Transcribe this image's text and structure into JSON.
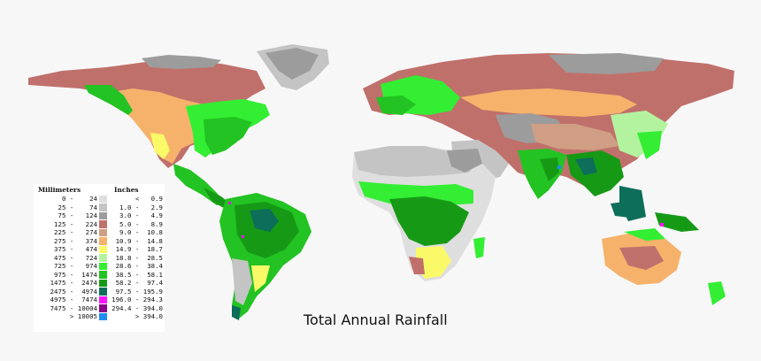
{
  "title": "Total Annual Rainfall",
  "legend": {
    "mm_header": "Millimeters",
    "in_header": "Inches",
    "rows": [
      {
        "mm": "0 -    24",
        "in": "<   0.9",
        "color": "#dedede"
      },
      {
        "mm": "25 -    74",
        "in": "1.0 -   2.9",
        "color": "#c4c4c4"
      },
      {
        "mm": "75 -   124",
        "in": "3.0 -   4.9",
        "color": "#9c9c9c"
      },
      {
        "mm": "125 -   224",
        "in": "5.0 -   8.9",
        "color": "#c0706b"
      },
      {
        "mm": "225 -   274",
        "in": "9.0 -  10.8",
        "color": "#cf9e84"
      },
      {
        "mm": "275 -   374",
        "in": "10.9 -  14.8",
        "color": "#f6b26b"
      },
      {
        "mm": "375 -   474",
        "in": "14.9 -  18.7",
        "color": "#fafa68"
      },
      {
        "mm": "475 -   724",
        "in": "18.8 -  28.5",
        "color": "#b3f3a0"
      },
      {
        "mm": "725 -   974",
        "in": "28.6 -  38.4",
        "color": "#33ee33"
      },
      {
        "mm": "975 -  1474",
        "in": "38.5 -  58.1",
        "color": "#22c322"
      },
      {
        "mm": "1475 -  2474",
        "in": "58.2 -  97.4",
        "color": "#169a16"
      },
      {
        "mm": "2475 -  4974",
        "in": "97.5 - 195.9",
        "color": "#0d6e5a"
      },
      {
        "mm": "4975 -  7474",
        "in": "196.0 - 294.3",
        "color": "#ff10ff"
      },
      {
        "mm": "7475 - 10004",
        "in": "294.4 - 394.0",
        "color": "#8a008a"
      },
      {
        "mm": "> 10005",
        "in": "> 394.0",
        "color": "#1e8ff0"
      }
    ]
  },
  "colors": {
    "background": "#f7f7f7",
    "ocean": "#f7f7f7"
  }
}
